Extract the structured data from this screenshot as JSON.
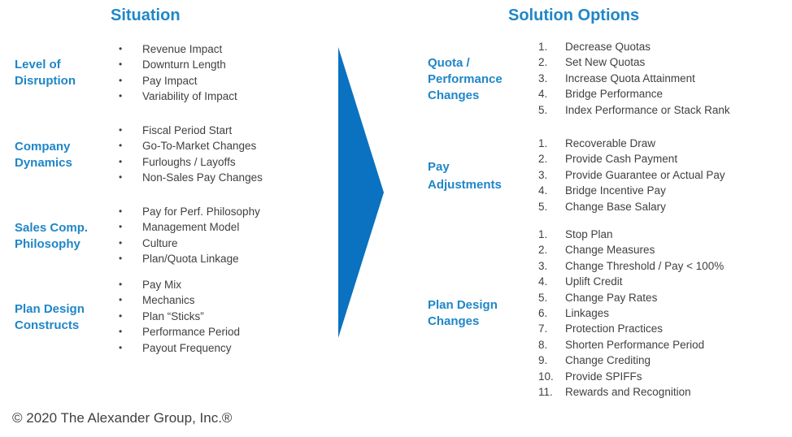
{
  "situation": {
    "title": "Situation",
    "groups": [
      {
        "label_lines": [
          "Level of",
          "Disruption"
        ],
        "items": [
          "Revenue Impact",
          "Downturn Length",
          "Pay Impact",
          "Variability of Impact"
        ]
      },
      {
        "label_lines": [
          "Company",
          "Dynamics"
        ],
        "items": [
          "Fiscal Period Start",
          "Go-To-Market Changes",
          "Furloughs / Layoffs",
          "Non-Sales Pay Changes"
        ]
      },
      {
        "label_lines": [
          "Sales Comp.",
          "Philosophy"
        ],
        "items": [
          "Pay for Perf. Philosophy",
          "Management Model",
          "Culture",
          "Plan/Quota Linkage"
        ]
      },
      {
        "label_lines": [
          "Plan Design",
          "Constructs"
        ],
        "items": [
          "Pay Mix",
          "Mechanics",
          "Plan “Sticks”",
          "Performance Period",
          "Payout Frequency"
        ]
      }
    ]
  },
  "solutions": {
    "title": "Solution Options",
    "groups": [
      {
        "label_lines": [
          "Quota /",
          "Performance",
          "Changes"
        ],
        "items": [
          "Decrease Quotas",
          "Set New Quotas",
          "Increase Quota Attainment",
          "Bridge Performance",
          "Index Performance or Stack Rank"
        ]
      },
      {
        "label_lines": [
          "Pay",
          "Adjustments"
        ],
        "items": [
          "Recoverable Draw",
          "Provide Cash Payment",
          "Provide Guarantee or Actual Pay",
          "Bridge Incentive Pay",
          "Change Base Salary"
        ]
      },
      {
        "label_lines": [
          "Plan Design",
          "Changes"
        ],
        "items": [
          "Stop Plan",
          "Change Measures",
          "Change Threshold / Pay < 100%",
          "Uplift Credit",
          "Change Pay Rates",
          "Linkages",
          "Protection Practices",
          "Shorten Performance Period",
          "Change Crediting",
          "Provide SPIFFs",
          "Rewards and Recognition"
        ]
      }
    ]
  },
  "bullet_glyph": "•",
  "colors": {
    "accent": "#1F86C8",
    "arrow": "#0A72C0",
    "text": "#404040"
  },
  "footer": "© 2020 The Alexander Group, Inc.®"
}
